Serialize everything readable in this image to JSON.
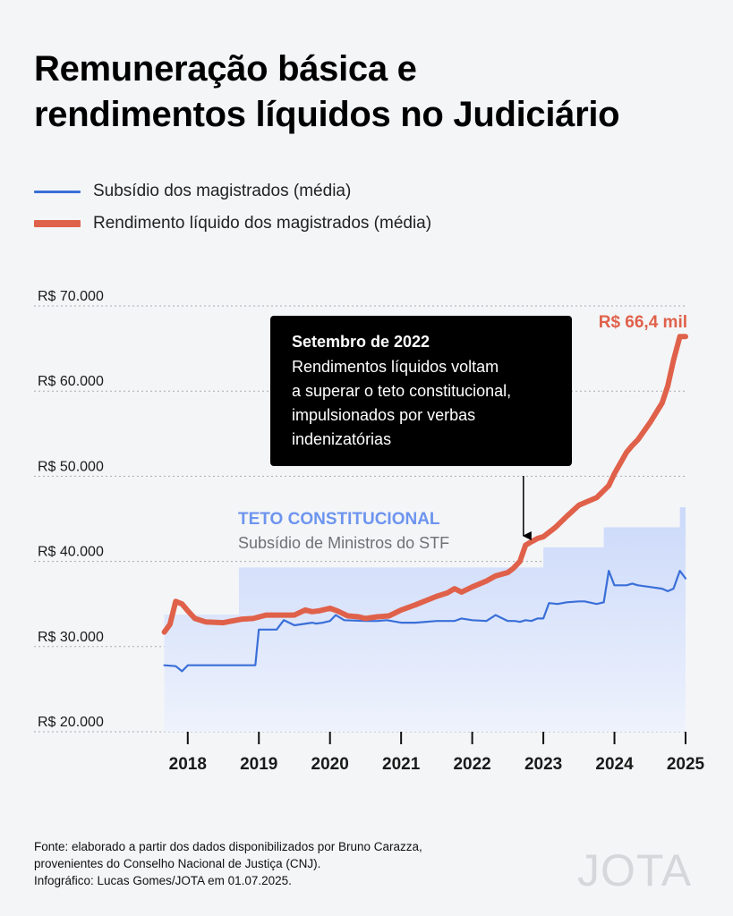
{
  "title_line1": "Remuneração básica e",
  "title_line2": "rendimentos líquidos no Judiciário",
  "legend": [
    {
      "label": "Subsídio dos magistrados (média)",
      "color": "#3a6fd8"
    },
    {
      "label": "Rendimento líquido dos magistrados (média)",
      "color": "#e0614a"
    }
  ],
  "annotation": {
    "title": "Setembro de 2022",
    "lines": [
      "Rendimentos líquidos voltam",
      "a superar o teto constitucional,",
      "impulsionados por verbas",
      "indenizatórias"
    ],
    "x": 2022.72
  },
  "teto_label": "TETO CONSTITUCIONAL",
  "teto_sublabel": "Subsídio de Ministros do STF",
  "end_label": "R$ 66,4 mil",
  "footer": [
    "Fonte: elaborado a partir dos dados disponibilizados por Bruno Carazza,",
    "provenientes do Conselho Nacional de Justiça (CNJ).",
    "Infográfico: Lucas Gomes/JOTA em 01.07.2025."
  ],
  "logo": "JOTA",
  "chart_data": {
    "type": "line",
    "title": "Remuneração básica e rendimentos líquidos no Judiciário",
    "ylim": [
      20000,
      70000
    ],
    "xlim": [
      2017.6,
      2025.0
    ],
    "y_ticks": [
      20000,
      30000,
      40000,
      50000,
      60000,
      70000
    ],
    "y_tick_labels": [
      "R$ 20.000",
      "R$ 30.000",
      "R$ 40.000",
      "R$ 50.000",
      "R$ 60.000",
      "R$ 70.000"
    ],
    "x_ticks": [
      2018,
      2019,
      2020,
      2021,
      2022,
      2023,
      2024,
      2025
    ],
    "x_tick_labels": [
      "2018",
      "2019",
      "2020",
      "2021",
      "2022",
      "2023",
      "2024",
      "2025"
    ],
    "grid": "horizontal dotted",
    "legend_position": "top-left",
    "colors": {
      "subsidio": "#3a6fd8",
      "rendimento": "#e0614a",
      "teto": "#c9d7f8",
      "teto_label": "#6d94ef"
    },
    "teto": {
      "name": "Teto constitucional",
      "x": [
        2017.67,
        2018.72,
        2018.72,
        2023.0,
        2023.0,
        2023.85,
        2023.85,
        2024.92,
        2024.92,
        2025.0
      ],
      "y": [
        33763,
        33763,
        39293,
        39293,
        41650,
        41650,
        44008,
        44008,
        46366,
        46366
      ]
    },
    "series": [
      {
        "name": "Subsídio dos magistrados (média)",
        "x": [
          2017.67,
          2017.83,
          2017.92,
          2018.0,
          2018.5,
          2018.67,
          2018.95,
          2019.0,
          2019.1,
          2019.2,
          2019.25,
          2019.35,
          2019.5,
          2019.75,
          2019.8,
          2019.9,
          2020.0,
          2020.08,
          2020.2,
          2020.5,
          2020.67,
          2020.8,
          2021.0,
          2021.2,
          2021.5,
          2021.75,
          2021.85,
          2022.0,
          2022.2,
          2022.33,
          2022.5,
          2022.6,
          2022.67,
          2022.75,
          2022.83,
          2022.92,
          2023.0,
          2023.08,
          2023.2,
          2023.33,
          2023.5,
          2023.58,
          2023.75,
          2023.85,
          2023.92,
          2024.0,
          2024.17,
          2024.25,
          2024.33,
          2024.5,
          2024.67,
          2024.75,
          2024.83,
          2024.92,
          2025.0
        ],
        "y": [
          27800,
          27700,
          27100,
          27800,
          27800,
          27800,
          27800,
          32000,
          32000,
          32000,
          32000,
          33100,
          32500,
          32800,
          32700,
          32800,
          33000,
          33700,
          33100,
          33000,
          33000,
          33100,
          32800,
          32800,
          33000,
          33000,
          33300,
          33100,
          33000,
          33700,
          33000,
          33000,
          32900,
          33100,
          33000,
          33300,
          33300,
          35100,
          35000,
          35200,
          35300,
          35300,
          35000,
          35200,
          38900,
          37200,
          37200,
          37400,
          37200,
          37000,
          36800,
          36500,
          36800,
          38900,
          38000
        ]
      },
      {
        "name": "Rendimento líquido dos magistrados (média)",
        "x": [
          2017.67,
          2017.75,
          2017.83,
          2017.92,
          2018.0,
          2018.1,
          2018.25,
          2018.5,
          2018.75,
          2018.92,
          2019.1,
          2019.25,
          2019.5,
          2019.65,
          2019.75,
          2019.85,
          2020.0,
          2020.1,
          2020.25,
          2020.4,
          2020.5,
          2020.67,
          2020.83,
          2021.0,
          2021.2,
          2021.35,
          2021.5,
          2021.65,
          2021.75,
          2021.85,
          2022.0,
          2022.2,
          2022.33,
          2022.5,
          2022.58,
          2022.67,
          2022.75,
          2022.83,
          2022.92,
          2023.0,
          2023.17,
          2023.33,
          2023.5,
          2023.75,
          2023.92,
          2024.0,
          2024.17,
          2024.25,
          2024.33,
          2024.5,
          2024.67,
          2024.75,
          2024.83,
          2024.92,
          2025.0
        ],
        "y": [
          31700,
          32600,
          35300,
          35000,
          34200,
          33300,
          32900,
          32800,
          33200,
          33300,
          33700,
          33700,
          33700,
          34300,
          34100,
          34200,
          34500,
          34200,
          33600,
          33500,
          33300,
          33500,
          33600,
          34300,
          34900,
          35400,
          35900,
          36300,
          36800,
          36400,
          37000,
          37700,
          38300,
          38700,
          39200,
          40000,
          41900,
          42300,
          42700,
          42900,
          44000,
          45300,
          46600,
          47500,
          48900,
          50300,
          52800,
          53600,
          54300,
          56300,
          58600,
          60600,
          63600,
          66400,
          66400
        ]
      }
    ]
  }
}
